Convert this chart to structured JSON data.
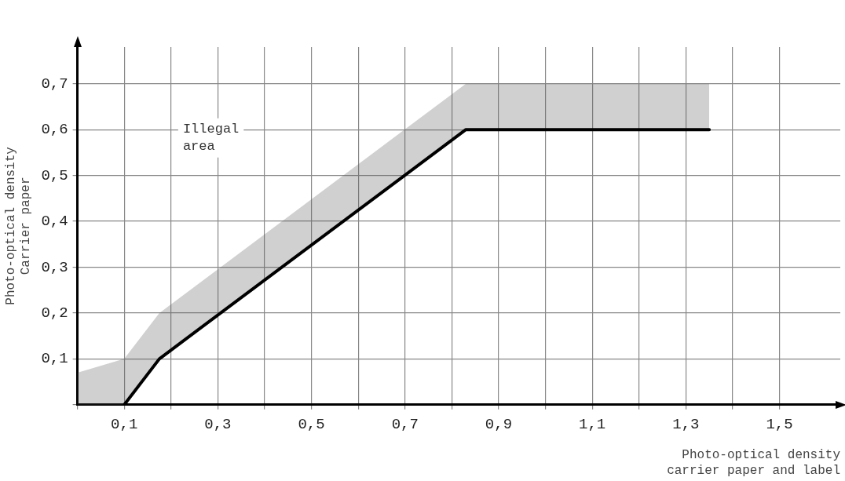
{
  "chart_data": {
    "type": "line",
    "xlabel": "Photo-optical density\ncarrier paper and label",
    "ylabel": "Photo-optical density\nCarrier paper",
    "x": [
      0,
      0.1,
      0.175,
      0.83,
      1.35
    ],
    "series": [
      {
        "color": "#000000",
        "values": [
          null,
          0,
          0.1,
          0.6,
          0.6
        ],
        "lower": [
          0,
          0,
          0.1,
          0.6,
          0.6
        ],
        "upper": [
          0.07,
          0.1,
          0.2,
          0.7,
          0.7
        ]
      }
    ],
    "annotations": [
      "Illegal\narea"
    ],
    "xlim": [
      0,
      1.63
    ],
    "ylim": [
      0,
      0.78
    ],
    "xticks": [
      {
        "value": 0,
        "label": null
      },
      {
        "value": 0.1,
        "label": "0,1"
      },
      {
        "value": 0.2,
        "label": null
      },
      {
        "value": 0.3,
        "label": "0,3"
      },
      {
        "value": 0.4,
        "label": null
      },
      {
        "value": 0.5,
        "label": "0,5"
      },
      {
        "value": 0.6,
        "label": null
      },
      {
        "value": 0.7,
        "label": "0,7"
      },
      {
        "value": 0.8,
        "label": null
      },
      {
        "value": 0.9,
        "label": "0,9"
      },
      {
        "value": 1.0,
        "label": null
      },
      {
        "value": 1.1,
        "label": "1,1"
      },
      {
        "value": 1.2,
        "label": null
      },
      {
        "value": 1.3,
        "label": "1,3"
      },
      {
        "value": 1.4,
        "label": null
      },
      {
        "value": 1.5,
        "label": "1,5"
      }
    ],
    "yticks": [
      {
        "value": 0,
        "label": null
      },
      {
        "value": 0.1,
        "label": "0,1"
      },
      {
        "value": 0.2,
        "label": "0,2"
      },
      {
        "value": 0.3,
        "label": "0,3"
      },
      {
        "value": 0.4,
        "label": "0,4"
      },
      {
        "value": 0.5,
        "label": "0,5"
      },
      {
        "value": 0.6,
        "label": "0,6"
      },
      {
        "value": 0.7,
        "label": "0,7"
      }
    ],
    "grid": true,
    "legend": false,
    "marker": "none",
    "line_style": "solid"
  }
}
